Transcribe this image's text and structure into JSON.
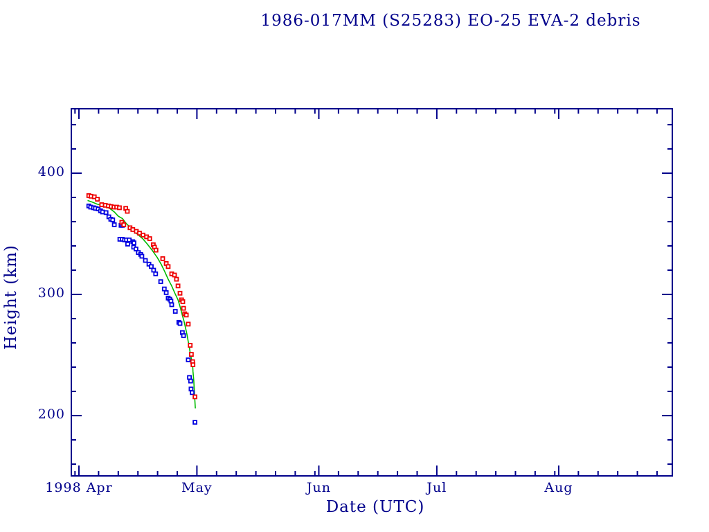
{
  "colors": {
    "background": "#ffffff",
    "axis": "#00008b",
    "series_red": "#ee0000",
    "series_blue": "#0000e0",
    "fit_line": "#00bb00"
  },
  "chart_data": {
    "type": "scatter",
    "title": "1986-017MM (S25283) EO-25 EVA-2 debris",
    "xlabel": "Date (UTC)",
    "ylabel": "Height (km)",
    "x_unit": "days since 1998 Apr 1 00:00 UTC",
    "x_axis_range_days": [
      -2,
      151
    ],
    "y_axis_range_km": [
      150,
      453
    ],
    "grid": false,
    "legend": "none",
    "x_major_ticks": [
      {
        "label": "1998 Apr",
        "day": 0
      },
      {
        "label": "May",
        "day": 30
      },
      {
        "label": "Jun",
        "day": 61
      },
      {
        "label": "Jul",
        "day": 91
      },
      {
        "label": "Aug",
        "day": 122
      }
    ],
    "x_minor_tick_days": [
      -1,
      5,
      10,
      15,
      20,
      25,
      35,
      40,
      45,
      50,
      55,
      60,
      66,
      71,
      76,
      81,
      86,
      96,
      101,
      106,
      111,
      116,
      121,
      127,
      132,
      137,
      142,
      147
    ],
    "y_major_ticks": [
      {
        "label": "400",
        "km": 400
      },
      {
        "label": "300",
        "km": 300
      },
      {
        "label": "200",
        "km": 200
      }
    ],
    "y_minor_ticks_km": [
      160,
      180,
      220,
      240,
      260,
      280,
      320,
      340,
      360,
      380,
      420,
      440
    ],
    "series": [
      {
        "name": "series-red",
        "marker": "open-square",
        "color_key": "series_red",
        "points_day_km": [
          [
            2.5,
            381.5
          ],
          [
            3.1,
            381
          ],
          [
            3.9,
            380.5
          ],
          [
            4.7,
            378.5
          ],
          [
            5.8,
            374
          ],
          [
            6.7,
            373.5
          ],
          [
            7.5,
            373
          ],
          [
            8.2,
            372.5
          ],
          [
            8.9,
            372
          ],
          [
            9.6,
            372
          ],
          [
            10.3,
            371.5
          ],
          [
            10.9,
            359.5
          ],
          [
            11.4,
            357.5
          ],
          [
            11.9,
            371
          ],
          [
            12.3,
            368.5
          ],
          [
            13.0,
            355
          ],
          [
            13.7,
            353.5
          ],
          [
            14.6,
            352
          ],
          [
            15.4,
            350.5
          ],
          [
            16.3,
            349
          ],
          [
            17.2,
            347.5
          ],
          [
            18.0,
            346
          ],
          [
            18.9,
            341
          ],
          [
            19.2,
            339
          ],
          [
            19.6,
            336.5
          ],
          [
            21.3,
            329.5
          ],
          [
            22.2,
            325.5
          ],
          [
            22.7,
            323
          ],
          [
            23.6,
            317
          ],
          [
            24.3,
            316
          ],
          [
            24.8,
            312.5
          ],
          [
            25.2,
            307
          ],
          [
            25.7,
            301
          ],
          [
            26.1,
            295.5
          ],
          [
            26.4,
            294
          ],
          [
            26.6,
            288.5
          ],
          [
            26.9,
            284
          ],
          [
            27.3,
            283
          ],
          [
            27.8,
            275.5
          ],
          [
            28.3,
            258
          ],
          [
            28.6,
            250.5
          ],
          [
            28.9,
            244.5
          ],
          [
            29.0,
            242
          ],
          [
            29.5,
            215.5
          ]
        ]
      },
      {
        "name": "series-blue",
        "marker": "open-square",
        "color_key": "series_blue",
        "points_day_km": [
          [
            2.5,
            373
          ],
          [
            3.0,
            372
          ],
          [
            3.7,
            371.5
          ],
          [
            4.2,
            371
          ],
          [
            4.9,
            370.5
          ],
          [
            5.5,
            369
          ],
          [
            6.0,
            368
          ],
          [
            6.9,
            367.5
          ],
          [
            7.6,
            364
          ],
          [
            8.1,
            362
          ],
          [
            8.6,
            361.5
          ],
          [
            9.0,
            357.5
          ],
          [
            10.7,
            357
          ],
          [
            11.1,
            357
          ],
          [
            10.4,
            345.5
          ],
          [
            11.0,
            345.5
          ],
          [
            11.6,
            345
          ],
          [
            12.1,
            345
          ],
          [
            12.8,
            345
          ],
          [
            12.4,
            341.5
          ],
          [
            13.7,
            343.5
          ],
          [
            14.0,
            342.5
          ],
          [
            13.9,
            339
          ],
          [
            14.5,
            337.5
          ],
          [
            15.1,
            334.5
          ],
          [
            15.7,
            333
          ],
          [
            16.0,
            331.5
          ],
          [
            16.9,
            328
          ],
          [
            17.8,
            325
          ],
          [
            18.4,
            323
          ],
          [
            19.0,
            320
          ],
          [
            19.5,
            317
          ],
          [
            20.8,
            310.5
          ],
          [
            21.7,
            304.5
          ],
          [
            22.2,
            301.5
          ],
          [
            22.7,
            297
          ],
          [
            23.1,
            296
          ],
          [
            23.4,
            294.5
          ],
          [
            23.6,
            291.5
          ],
          [
            24.5,
            286
          ],
          [
            25.4,
            277
          ],
          [
            25.7,
            276
          ],
          [
            26.3,
            268.5
          ],
          [
            26.6,
            266
          ],
          [
            27.8,
            246
          ],
          [
            28.1,
            231.5
          ],
          [
            28.4,
            228.5
          ],
          [
            28.5,
            222
          ],
          [
            28.8,
            219
          ],
          [
            29.5,
            194.5
          ]
        ]
      }
    ],
    "fit_line": {
      "name": "fit-line",
      "color_key": "fit_line",
      "points_day_km": [
        [
          2.2,
          377.5
        ],
        [
          3.5,
          376
        ],
        [
          4.6,
          374.5
        ],
        [
          5.8,
          373.5
        ],
        [
          6.9,
          372.5
        ],
        [
          8.0,
          370.5
        ],
        [
          9.0,
          368
        ],
        [
          10.0,
          364.5
        ],
        [
          11.1,
          362.5
        ],
        [
          12.0,
          358.5
        ],
        [
          13.0,
          355.5
        ],
        [
          14.0,
          352
        ],
        [
          15.1,
          349
        ],
        [
          16.2,
          346
        ],
        [
          17.4,
          341.5
        ],
        [
          18.6,
          336.5
        ],
        [
          19.9,
          330.5
        ],
        [
          20.9,
          325
        ],
        [
          21.8,
          319
        ],
        [
          22.7,
          312.5
        ],
        [
          23.6,
          307
        ],
        [
          24.4,
          301
        ],
        [
          25.2,
          295.5
        ],
        [
          25.7,
          290
        ],
        [
          26.2,
          284
        ],
        [
          26.7,
          278
        ],
        [
          27.1,
          272.5
        ],
        [
          27.5,
          266.5
        ],
        [
          27.8,
          261
        ],
        [
          28.1,
          256
        ],
        [
          28.3,
          251.5
        ],
        [
          28.6,
          247
        ],
        [
          28.9,
          242
        ],
        [
          29.0,
          236.5
        ],
        [
          29.2,
          228.5
        ],
        [
          29.4,
          217
        ],
        [
          29.6,
          206
        ]
      ]
    }
  }
}
